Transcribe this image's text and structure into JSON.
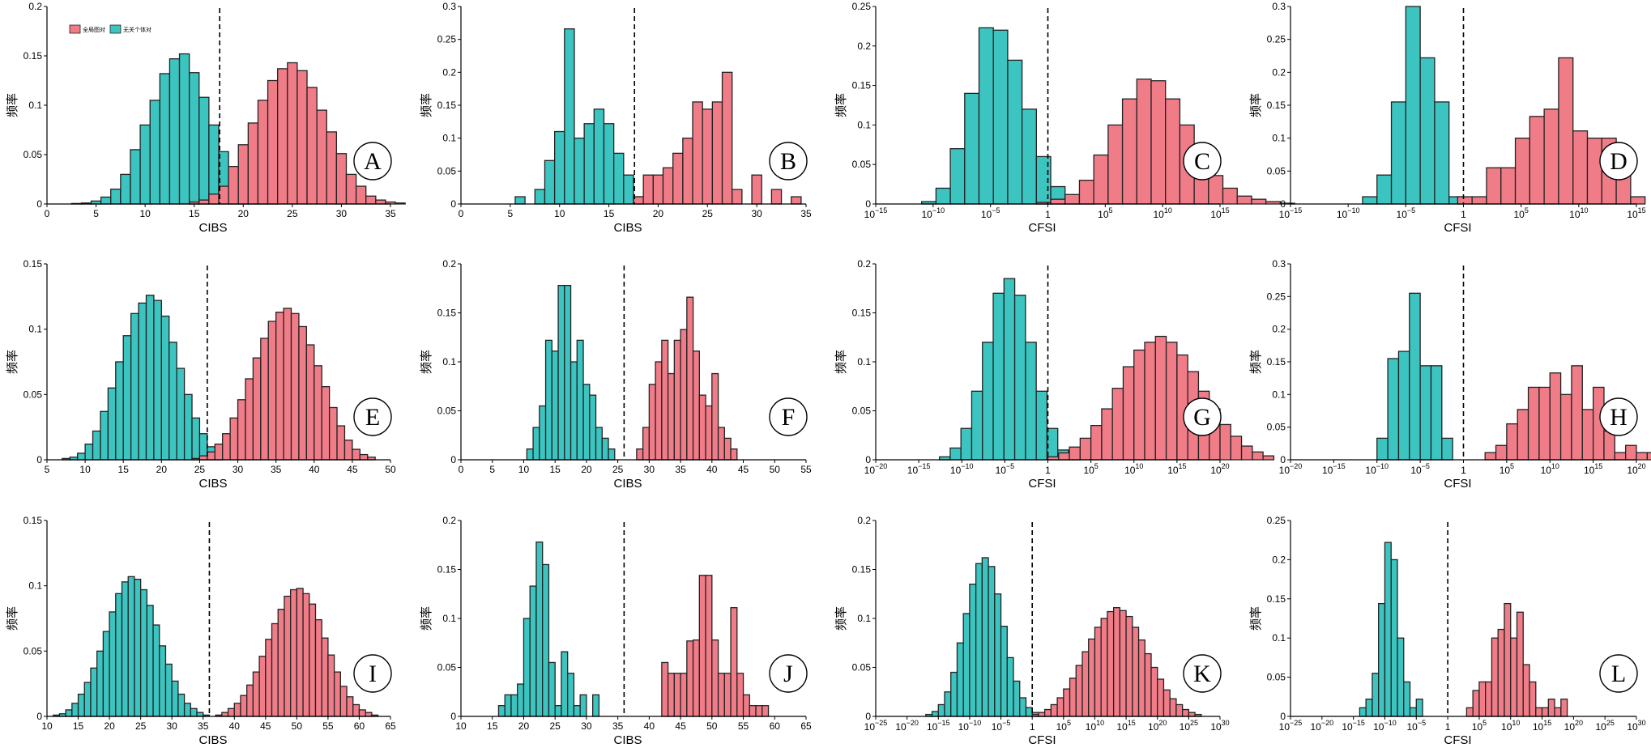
{
  "legend": {
    "items": [
      {
        "label": "全局图对",
        "color": "#F07C88"
      },
      {
        "label": "无关个体对",
        "color": "#3CC4C0"
      }
    ]
  },
  "colors": {
    "related": "#F07C88",
    "unrelated": "#3CC4C0",
    "threshold": "#000000"
  },
  "chart_data": [
    {
      "panel": "A",
      "type": "bar",
      "xlabel": "CIBS",
      "ylabel": "频率",
      "xlim": [
        0,
        35
      ],
      "ylim": [
        0,
        0.2
      ],
      "xticks": [
        0,
        5,
        10,
        15,
        20,
        25,
        30,
        35
      ],
      "yticks": [
        0,
        0.05,
        0.1,
        0.15,
        0.2
      ],
      "threshold": 17.6,
      "legend": "top-left",
      "series": [
        {
          "role": "unrelated",
          "bin_start": 2.5,
          "bin_width": 1,
          "values": [
            0.0005,
            0.001,
            0.003,
            0.007,
            0.015,
            0.03,
            0.055,
            0.08,
            0.105,
            0.132,
            0.147,
            0.152,
            0.133,
            0.108,
            0.08,
            0.053,
            0.032,
            0.017,
            0.008,
            0.003,
            0.001
          ]
        },
        {
          "role": "related",
          "bin_start": 14.5,
          "bin_width": 1,
          "values": [
            0.002,
            0.004,
            0.01,
            0.018,
            0.038,
            0.06,
            0.082,
            0.105,
            0.125,
            0.137,
            0.143,
            0.135,
            0.118,
            0.095,
            0.073,
            0.051,
            0.03,
            0.018,
            0.008,
            0.004,
            0.002,
            0.001
          ]
        }
      ]
    },
    {
      "panel": "B",
      "type": "bar",
      "xlabel": "CIBS",
      "ylabel": "频率",
      "xlim": [
        0,
        35
      ],
      "ylim": [
        0,
        0.3
      ],
      "xticks": [
        0,
        5,
        10,
        15,
        20,
        25,
        30,
        35
      ],
      "yticks": [
        0,
        0.05,
        0.1,
        0.15,
        0.2,
        0.25,
        0.3
      ],
      "threshold": 17.6,
      "series": [
        {
          "role": "unrelated",
          "bin_start": 5.5,
          "bin_width": 1,
          "values": [
            0.011,
            0,
            0.022,
            0.066,
            0.11,
            0.266,
            0.1,
            0.122,
            0.144,
            0.122,
            0.077,
            0.044,
            0.011
          ]
        },
        {
          "role": "related",
          "bin_start": 17.5,
          "bin_width": 1,
          "values": [
            0.011,
            0.044,
            0.044,
            0.055,
            0.077,
            0.1,
            0.155,
            0.144,
            0.155,
            0.2,
            0.022,
            0,
            0.044,
            0,
            0.022,
            0,
            0.011
          ]
        }
      ]
    },
    {
      "panel": "C",
      "type": "bar",
      "xlabel": "CFSI",
      "ylabel": "频率",
      "xscale": "log",
      "xlim": [
        -15,
        15
      ],
      "ylim": [
        0,
        0.25
      ],
      "xticks": [
        -15,
        -10,
        -5,
        0,
        5,
        10,
        15
      ],
      "yticks": [
        0,
        0.05,
        0.1,
        0.15,
        0.2,
        0.25
      ],
      "threshold": 0,
      "series": [
        {
          "role": "unrelated",
          "bin_start": -11,
          "bin_width": 1.25,
          "values": [
            0.003,
            0.02,
            0.07,
            0.14,
            0.223,
            0.22,
            0.182,
            0.12,
            0.06,
            0.022,
            0.01,
            0.003
          ]
        },
        {
          "role": "related",
          "bin_start": -1,
          "bin_width": 1.25,
          "values": [
            0.002,
            0.006,
            0.012,
            0.03,
            0.062,
            0.1,
            0.133,
            0.158,
            0.156,
            0.133,
            0.1,
            0.065,
            0.036,
            0.02,
            0.01,
            0.006,
            0.003,
            0.001
          ]
        }
      ]
    },
    {
      "panel": "D",
      "type": "bar",
      "xlabel": "CFSI",
      "ylabel": "频率",
      "xscale": "log",
      "xlim": [
        -15,
        15
      ],
      "ylim": [
        0,
        0.3
      ],
      "xticks": [
        -15,
        -10,
        -5,
        0,
        5,
        10,
        15
      ],
      "yticks": [
        0,
        0.05,
        0.1,
        0.15,
        0.2,
        0.25,
        0.3
      ],
      "threshold": 0,
      "series": [
        {
          "role": "unrelated",
          "bin_start": -8.75,
          "bin_width": 1.25,
          "values": [
            0.011,
            0.044,
            0.155,
            0.3,
            0.222,
            0.155,
            0.011
          ]
        },
        {
          "role": "related",
          "bin_start": -0.5,
          "bin_width": 1.25,
          "values": [
            0.011,
            0.011,
            0.055,
            0.055,
            0.1,
            0.133,
            0.144,
            0.222,
            0.111,
            0.1,
            0.1,
            0.044,
            0.011
          ]
        }
      ]
    },
    {
      "panel": "E",
      "type": "bar",
      "xlabel": "CIBS",
      "ylabel": "频率",
      "xlim": [
        5,
        50
      ],
      "ylim": [
        0,
        0.15
      ],
      "xticks": [
        5,
        10,
        15,
        20,
        25,
        30,
        35,
        40,
        45,
        50
      ],
      "yticks": [
        0,
        0.05,
        0.1,
        0.15
      ],
      "threshold": 26,
      "series": [
        {
          "role": "unrelated",
          "bin_start": 7,
          "bin_width": 1,
          "values": [
            0.001,
            0.002,
            0.005,
            0.012,
            0.022,
            0.037,
            0.055,
            0.075,
            0.095,
            0.112,
            0.12,
            0.126,
            0.122,
            0.11,
            0.09,
            0.07,
            0.05,
            0.032,
            0.02,
            0.01,
            0.005
          ]
        },
        {
          "role": "related",
          "bin_start": 24,
          "bin_width": 1,
          "values": [
            0.001,
            0.003,
            0.006,
            0.012,
            0.02,
            0.032,
            0.046,
            0.062,
            0.078,
            0.093,
            0.106,
            0.113,
            0.116,
            0.112,
            0.102,
            0.088,
            0.072,
            0.056,
            0.04,
            0.026,
            0.015,
            0.008,
            0.004,
            0.002
          ]
        }
      ]
    },
    {
      "panel": "F",
      "type": "bar",
      "xlabel": "CIBS",
      "ylabel": "频率",
      "xlim": [
        0,
        55
      ],
      "ylim": [
        0,
        0.2
      ],
      "xticks": [
        0,
        5,
        10,
        15,
        20,
        25,
        30,
        35,
        40,
        45,
        50,
        55
      ],
      "yticks": [
        0,
        0.05,
        0.1,
        0.15,
        0.2
      ],
      "threshold": 26,
      "series": [
        {
          "role": "unrelated",
          "bin_start": 10.5,
          "bin_width": 1,
          "values": [
            0.011,
            0.033,
            0.055,
            0.122,
            0.111,
            0.178,
            0.178,
            0.1,
            0.122,
            0.077,
            0.066,
            0.033,
            0.022,
            0.011
          ]
        },
        {
          "role": "related",
          "bin_start": 28,
          "bin_width": 1,
          "values": [
            0.011,
            0.033,
            0.077,
            0.1,
            0.122,
            0.088,
            0.122,
            0.133,
            0.166,
            0.111,
            0.066,
            0.055,
            0.088,
            0.033,
            0.022,
            0.011
          ]
        }
      ]
    },
    {
      "panel": "G",
      "type": "bar",
      "xlabel": "CFSI",
      "ylabel": "频率",
      "xscale": "log",
      "xlim": [
        -20,
        20
      ],
      "ylim": [
        0,
        0.2
      ],
      "xticks": [
        -20,
        -15,
        -10,
        -5,
        0,
        5,
        10,
        15,
        20
      ],
      "yticks": [
        0,
        0.05,
        0.1,
        0.15,
        0.2
      ],
      "threshold": 0,
      "series": [
        {
          "role": "unrelated",
          "bin_start": -12.6,
          "bin_width": 1.25,
          "values": [
            0.003,
            0.012,
            0.032,
            0.07,
            0.12,
            0.17,
            0.185,
            0.168,
            0.12,
            0.07,
            0.032,
            0.01,
            0.003
          ]
        },
        {
          "role": "related",
          "bin_start": 0,
          "bin_width": 1.25,
          "values": [
            0.003,
            0.007,
            0.013,
            0.022,
            0.035,
            0.052,
            0.073,
            0.095,
            0.112,
            0.12,
            0.126,
            0.12,
            0.107,
            0.09,
            0.07,
            0.052,
            0.036,
            0.024,
            0.014,
            0.008,
            0.004
          ]
        }
      ]
    },
    {
      "panel": "H",
      "type": "bar",
      "xlabel": "CFSI",
      "ylabel": "频率",
      "xscale": "log",
      "xlim": [
        -20,
        20
      ],
      "ylim": [
        0,
        0.3
      ],
      "xticks": [
        -20,
        -15,
        -10,
        -5,
        0,
        5,
        10,
        15,
        20
      ],
      "yticks": [
        0,
        0.05,
        0.1,
        0.15,
        0.2,
        0.25,
        0.3
      ],
      "threshold": 0,
      "series": [
        {
          "role": "unrelated",
          "bin_start": -10,
          "bin_width": 1.25,
          "values": [
            0.033,
            0.155,
            0.166,
            0.255,
            0.144,
            0.144,
            0.033
          ]
        },
        {
          "role": "related",
          "bin_start": 2.5,
          "bin_width": 1.25,
          "values": [
            0.011,
            0.022,
            0.055,
            0.077,
            0.111,
            0.111,
            0.133,
            0.1,
            0.144,
            0.077,
            0.111,
            0.044,
            0.011,
            0.022,
            0.011,
            0.011,
            0.011
          ]
        }
      ]
    },
    {
      "panel": "I",
      "type": "bar",
      "xlabel": "CIBS",
      "ylabel": "频率",
      "xlim": [
        10,
        65
      ],
      "ylim": [
        0,
        0.15
      ],
      "xticks": [
        10,
        15,
        20,
        25,
        30,
        35,
        40,
        45,
        50,
        55,
        60,
        65
      ],
      "yticks": [
        0,
        0.05,
        0.1,
        0.15
      ],
      "threshold": 36,
      "series": [
        {
          "role": "unrelated",
          "bin_start": 11,
          "bin_width": 1,
          "values": [
            0.001,
            0.002,
            0.005,
            0.01,
            0.017,
            0.026,
            0.037,
            0.05,
            0.065,
            0.08,
            0.094,
            0.103,
            0.107,
            0.105,
            0.097,
            0.085,
            0.07,
            0.054,
            0.04,
            0.027,
            0.017,
            0.01,
            0.006,
            0.003,
            0.001
          ]
        },
        {
          "role": "related",
          "bin_start": 37,
          "bin_width": 1,
          "values": [
            0.001,
            0.003,
            0.006,
            0.01,
            0.016,
            0.024,
            0.034,
            0.046,
            0.059,
            0.071,
            0.082,
            0.092,
            0.097,
            0.098,
            0.094,
            0.086,
            0.074,
            0.06,
            0.047,
            0.034,
            0.023,
            0.015,
            0.009,
            0.005,
            0.003,
            0.001
          ]
        }
      ]
    },
    {
      "panel": "J",
      "type": "bar",
      "xlabel": "CIBS",
      "ylabel": "频率",
      "xlim": [
        10,
        65
      ],
      "ylim": [
        0,
        0.2
      ],
      "xticks": [
        10,
        15,
        20,
        25,
        30,
        35,
        40,
        45,
        50,
        55,
        60,
        65
      ],
      "yticks": [
        0,
        0.05,
        0.1,
        0.15,
        0.2
      ],
      "threshold": 36,
      "series": [
        {
          "role": "unrelated",
          "bin_start": 16,
          "bin_width": 1,
          "values": [
            0.011,
            0.022,
            0.022,
            0.033,
            0.1,
            0.133,
            0.178,
            0.155,
            0.055,
            0.011,
            0.066,
            0.044,
            0.011,
            0.022,
            0,
            0.022
          ]
        },
        {
          "role": "related",
          "bin_start": 42,
          "bin_width": 1,
          "values": [
            0.055,
            0.044,
            0.044,
            0.044,
            0.077,
            0.078,
            0.144,
            0.144,
            0.078,
            0.044,
            0.044,
            0.111,
            0.044,
            0.022,
            0.011,
            0.011,
            0.011
          ]
        }
      ]
    },
    {
      "panel": "K",
      "type": "bar",
      "xlabel": "CFSI",
      "ylabel": "频率",
      "xscale": "log",
      "xlim": [
        -25,
        30
      ],
      "ylim": [
        0,
        0.2
      ],
      "xticks": [
        -25,
        -20,
        -15,
        -10,
        -5,
        0,
        5,
        10,
        15,
        20,
        25,
        30
      ],
      "yticks": [
        0,
        0.05,
        0.1,
        0.15,
        0.2
      ],
      "threshold": 0,
      "series": [
        {
          "role": "unrelated",
          "bin_start": -17,
          "bin_width": 1,
          "values": [
            0.002,
            0.005,
            0.012,
            0.025,
            0.045,
            0.075,
            0.105,
            0.135,
            0.156,
            0.162,
            0.153,
            0.125,
            0.092,
            0.06,
            0.036,
            0.019,
            0.009,
            0.004,
            0.002,
            0.001
          ]
        },
        {
          "role": "related",
          "bin_start": 0,
          "bin_width": 1,
          "values": [
            0.002,
            0.004,
            0.007,
            0.012,
            0.019,
            0.028,
            0.039,
            0.052,
            0.066,
            0.079,
            0.091,
            0.1,
            0.107,
            0.111,
            0.108,
            0.102,
            0.091,
            0.078,
            0.064,
            0.05,
            0.038,
            0.027,
            0.018,
            0.012,
            0.007,
            0.004,
            0.002
          ]
        }
      ]
    },
    {
      "panel": "L",
      "type": "bar",
      "xlabel": "CFSI",
      "ylabel": "频率",
      "xscale": "log",
      "xlim": [
        -25,
        30
      ],
      "ylim": [
        0,
        0.25
      ],
      "xticks": [
        -25,
        -20,
        -15,
        -10,
        -5,
        0,
        5,
        10,
        15,
        20,
        25,
        30
      ],
      "yticks": [
        0,
        0.05,
        0.1,
        0.15,
        0.2,
        0.25
      ],
      "threshold": 0,
      "series": [
        {
          "role": "unrelated",
          "bin_start": -14,
          "bin_width": 1,
          "values": [
            0.011,
            0.022,
            0.055,
            0.144,
            0.222,
            0.2,
            0.1,
            0.044,
            0.011,
            0.022
          ]
        },
        {
          "role": "related",
          "bin_start": 3,
          "bin_width": 1,
          "values": [
            0.011,
            0.033,
            0.044,
            0.044,
            0.1,
            0.111,
            0.144,
            0.1,
            0.133,
            0.066,
            0.044,
            0.011,
            0.011,
            0.022,
            0.011,
            0.022
          ]
        }
      ]
    }
  ]
}
